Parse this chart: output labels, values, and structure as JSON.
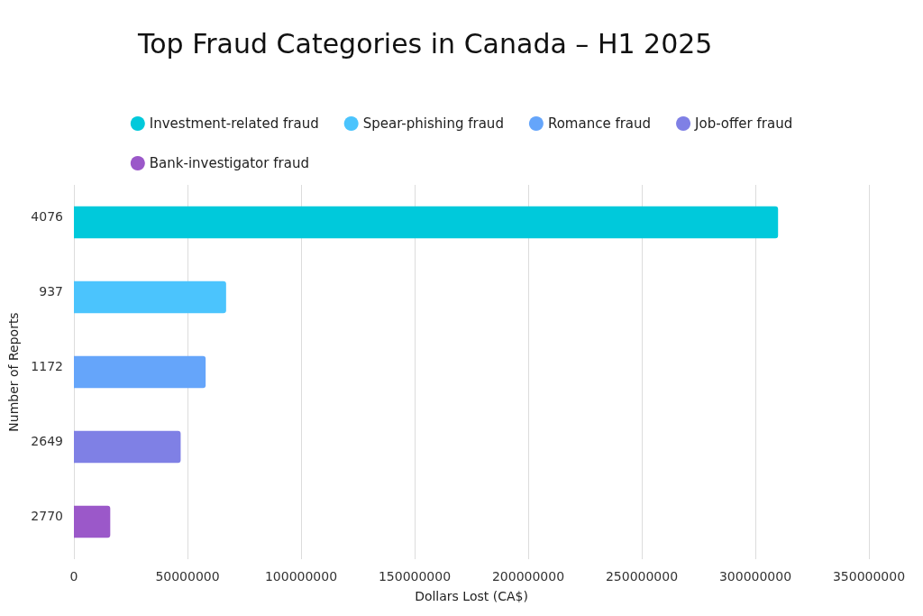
{
  "chart_data": {
    "type": "bar",
    "orientation": "horizontal",
    "title": "Top Fraud Categories in Canada – H1 2025",
    "xlabel": "Dollars Lost (CA$)",
    "ylabel": "Number of Reports",
    "categories": [
      "4076",
      "937",
      "1172",
      "2649",
      "2770"
    ],
    "series": [
      {
        "name": "Investment-related fraud",
        "color": "#00c9db",
        "values": [
          310000000,
          null,
          null,
          null,
          null
        ]
      },
      {
        "name": "Spear-phishing fraud",
        "color": "#4bc4fd",
        "values": [
          null,
          67000000,
          null,
          null,
          null
        ]
      },
      {
        "name": "Romance fraud",
        "color": "#65a5fa",
        "values": [
          null,
          null,
          58000000,
          null,
          null
        ]
      },
      {
        "name": "Job-offer fraud",
        "color": "#7f80e5",
        "values": [
          null,
          null,
          null,
          47000000,
          null
        ]
      },
      {
        "name": "Bank-investigator fraud",
        "color": "#9b58c9",
        "values": [
          null,
          null,
          null,
          null,
          16000000
        ]
      }
    ],
    "xlim": [
      0,
      350000000
    ],
    "xticks": [
      0,
      50000000,
      100000000,
      150000000,
      200000000,
      250000000,
      300000000,
      350000000
    ],
    "grid": "x",
    "legend": "top"
  }
}
